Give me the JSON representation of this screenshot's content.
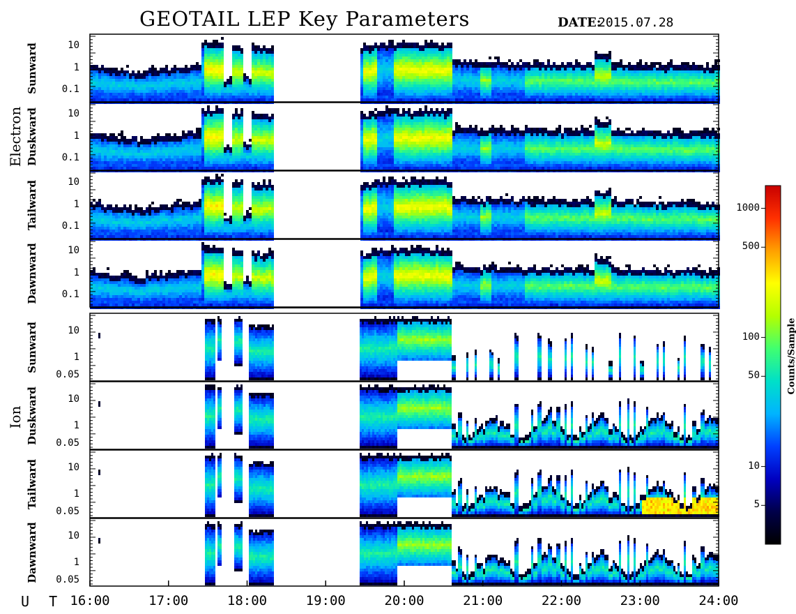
{
  "chart_data": {
    "type": "heatmap",
    "title": "GEOTAIL LEP Key Parameters",
    "date": {
      "label": "DATE:",
      "value": "2015.07.28"
    },
    "x_axis": {
      "label": "U T",
      "range_hours": [
        16,
        24
      ],
      "tick_labels": [
        "16:00",
        "17:00",
        "18:00",
        "19:00",
        "20:00",
        "21:00",
        "22:00",
        "23:00",
        "24:00"
      ]
    },
    "data_gap_hours": [
      18.33,
      19.42
    ],
    "colorbar": {
      "label": "Counts/Sample",
      "scale": "log",
      "range": [
        2.5,
        1500
      ],
      "tick_labels": [
        "5",
        "10",
        "50",
        "100",
        "500",
        "1000"
      ],
      "tick_values": [
        5,
        10,
        50,
        100,
        500,
        1000
      ],
      "colors": [
        "#000000",
        "#00004a",
        "#0000c0",
        "#0040ff",
        "#00b4ff",
        "#00e0c8",
        "#40ff70",
        "#b4ff00",
        "#ffff00",
        "#ffa000",
        "#ff3000",
        "#c80000"
      ]
    },
    "groups": [
      {
        "name": "Electron",
        "yscale": "log",
        "ylim": [
          0.05,
          20
        ],
        "ytick_labels": [
          "10",
          "1",
          "0.1"
        ],
        "ytick_values": [
          10,
          1,
          0.1
        ],
        "panels": [
          {
            "direction": "Sunward"
          },
          {
            "direction": "Duskward"
          },
          {
            "direction": "Tailward"
          },
          {
            "direction": "Dawnward"
          }
        ]
      },
      {
        "name": "Ion",
        "yscale": "log",
        "ylim": [
          0.04,
          25
        ],
        "ytick_labels": [
          "10",
          "1",
          "0.05"
        ],
        "ytick_values": [
          10,
          1,
          0.05
        ],
        "panels": [
          {
            "direction": "Sunward"
          },
          {
            "direction": "Duskward"
          },
          {
            "direction": "Tailward"
          },
          {
            "direction": "Dawnward"
          }
        ]
      }
    ]
  }
}
